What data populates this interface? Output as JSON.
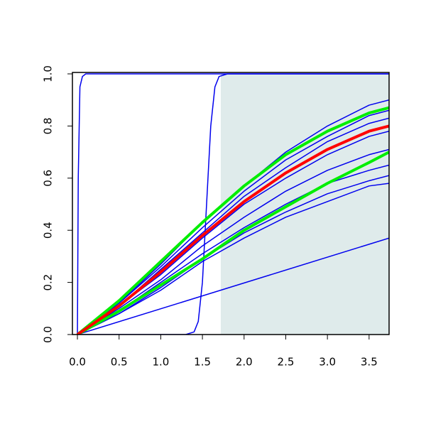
{
  "chart_data": {
    "type": "line",
    "xlim": [
      -0.06,
      3.74
    ],
    "ylim": [
      0,
      1
    ],
    "xticks": [
      {
        "value": 0,
        "label": "0.0"
      },
      {
        "value": 0.5,
        "label": "0.5"
      },
      {
        "value": 1,
        "label": "1.0"
      },
      {
        "value": 1.5,
        "label": "1.5"
      },
      {
        "value": 2,
        "label": "2.0"
      },
      {
        "value": 2.5,
        "label": "2.5"
      },
      {
        "value": 3,
        "label": "3.0"
      },
      {
        "value": 3.5,
        "label": "3.5"
      }
    ],
    "yticks": [
      {
        "value": 0,
        "label": "0.0"
      },
      {
        "value": 0.2,
        "label": "0.2"
      },
      {
        "value": 0.4,
        "label": "0.4"
      },
      {
        "value": 0.6,
        "label": "0.6"
      },
      {
        "value": 0.8,
        "label": "0.8"
      },
      {
        "value": 1,
        "label": "1.0"
      }
    ],
    "shade": {
      "from": 1.72,
      "color": "#dfebeb"
    },
    "series": [
      {
        "color": "#0000ee",
        "width": 1.5,
        "x": [
          0,
          0.5,
          1,
          1.5,
          2,
          2.5,
          3,
          3.5,
          3.74
        ],
        "values": [
          0,
          0.12,
          0.27,
          0.43,
          0.57,
          0.7,
          0.8,
          0.88,
          0.9
        ]
      },
      {
        "color": "#0000ee",
        "width": 1.5,
        "x": [
          0,
          0.5,
          1,
          1.5,
          2,
          2.5,
          3,
          3.5,
          3.74
        ],
        "values": [
          0,
          0.12,
          0.26,
          0.41,
          0.55,
          0.67,
          0.76,
          0.84,
          0.86
        ]
      },
      {
        "color": "#0000ee",
        "width": 1.5,
        "x": [
          0,
          0.5,
          1,
          1.5,
          2,
          2.5,
          3,
          3.5,
          3.74
        ],
        "values": [
          0,
          0.11,
          0.25,
          0.39,
          0.53,
          0.64,
          0.74,
          0.81,
          0.83
        ]
      },
      {
        "color": "#0000ee",
        "width": 1.5,
        "x": [
          0,
          0.5,
          1,
          1.5,
          2,
          2.5,
          3,
          3.5,
          3.74
        ],
        "values": [
          0,
          0.11,
          0.23,
          0.37,
          0.5,
          0.6,
          0.69,
          0.76,
          0.78
        ]
      },
      {
        "color": "#0000ee",
        "width": 1.5,
        "x": [
          0,
          0.5,
          1,
          1.5,
          2,
          2.5,
          3,
          3.5,
          3.74
        ],
        "values": [
          0,
          0.1,
          0.21,
          0.34,
          0.45,
          0.55,
          0.63,
          0.69,
          0.71
        ]
      },
      {
        "color": "#0000ee",
        "width": 1.5,
        "x": [
          0,
          0.5,
          1,
          1.5,
          2,
          2.5,
          3,
          3.5,
          3.74
        ],
        "values": [
          0,
          0.09,
          0.2,
          0.31,
          0.41,
          0.5,
          0.58,
          0.63,
          0.65
        ]
      },
      {
        "color": "#0000ee",
        "width": 1.5,
        "x": [
          0,
          0.5,
          1,
          1.5,
          2,
          2.5,
          3,
          3.5,
          3.74
        ],
        "values": [
          0,
          0.08,
          0.18,
          0.29,
          0.39,
          0.47,
          0.54,
          0.59,
          0.61
        ]
      },
      {
        "color": "#0000ee",
        "width": 1.5,
        "x": [
          0,
          0.5,
          1,
          1.5,
          2,
          2.5,
          3,
          3.5,
          3.74
        ],
        "values": [
          0,
          0.08,
          0.17,
          0.28,
          0.37,
          0.45,
          0.51,
          0.57,
          0.58
        ]
      },
      {
        "color": "#0000ee",
        "width": 1.5,
        "x": [
          0,
          3.74
        ],
        "values": [
          0,
          0.37
        ]
      },
      {
        "color": "#0000ee",
        "width": 1.5,
        "x": [
          0,
          0.01,
          0.03,
          0.06,
          0.1,
          3.74
        ],
        "values": [
          0,
          0.6,
          0.95,
          0.99,
          1,
          1
        ]
      },
      {
        "color": "#0000ee",
        "width": 1.5,
        "x": [
          0,
          1.3,
          1.4,
          1.45,
          1.5,
          1.55,
          1.6,
          1.65,
          1.7,
          1.8,
          3.74
        ],
        "values": [
          0,
          0,
          0.01,
          0.05,
          0.2,
          0.5,
          0.8,
          0.95,
          0.99,
          1,
          1
        ]
      },
      {
        "color": "#00ee00",
        "width": 4,
        "x": [
          0,
          0.5,
          1,
          1.5,
          2,
          2.5,
          3,
          3.5,
          3.74
        ],
        "values": [
          0,
          0.13,
          0.28,
          0.43,
          0.57,
          0.69,
          0.78,
          0.85,
          0.87
        ]
      },
      {
        "color": "#00ee00",
        "width": 4,
        "x": [
          0,
          0.5,
          1,
          1.5,
          2,
          2.5,
          3,
          3.5,
          3.74
        ],
        "values": [
          0,
          0.09,
          0.19,
          0.29,
          0.4,
          0.49,
          0.58,
          0.66,
          0.7
        ]
      },
      {
        "color": "#ff0000",
        "width": 4,
        "x": [
          0,
          0.5,
          1,
          1.5,
          2,
          2.5,
          3,
          3.5,
          3.74
        ],
        "values": [
          0,
          0.11,
          0.24,
          0.38,
          0.51,
          0.62,
          0.71,
          0.78,
          0.8
        ]
      }
    ]
  }
}
